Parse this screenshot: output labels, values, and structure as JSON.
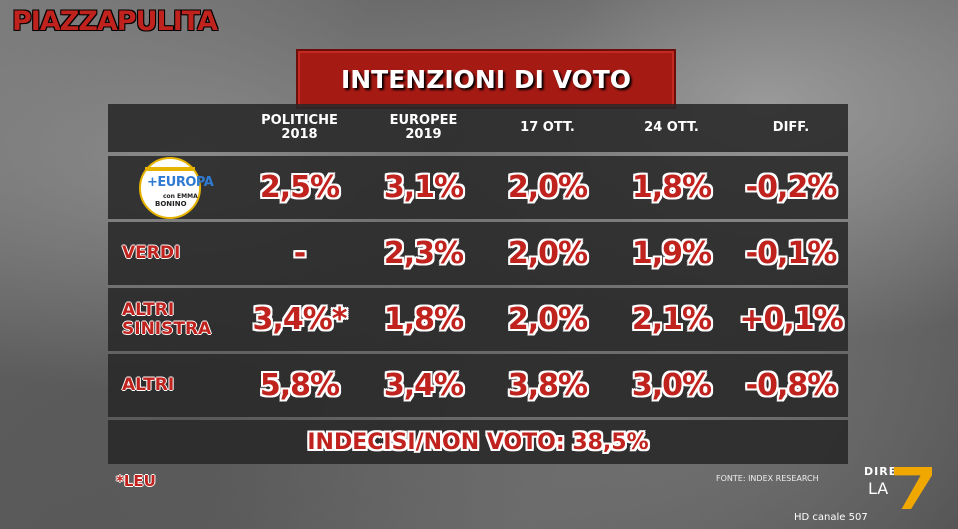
{
  "brand": "PIAZZAPULITA",
  "title": "INTENZIONI DI VOTO",
  "chart_data": {
    "type": "table",
    "title": "INTENZIONI DI VOTO",
    "columns": [
      "POLITICHE 2018",
      "EUROPEE 2019",
      "17 OTT.",
      "24 OTT.",
      "DIFF."
    ],
    "header": {
      "col1_line1": "POLITICHE",
      "col1_line2": "2018",
      "col2_line1": "EUROPEE",
      "col2_line2": "2019",
      "col3": "17 OTT.",
      "col4": "24 OTT.",
      "col5": "DIFF."
    },
    "rows": [
      {
        "party": "+EUROPA",
        "logo": {
          "top": "+EUROPA",
          "sub1": "con EMMA",
          "sub2": "BONINO"
        },
        "politiche_2018": "2,5%",
        "europee_2019": "3,1%",
        "ott_17": "2,0%",
        "ott_24": "1,8%",
        "diff": "-0,2%"
      },
      {
        "party": "VERDI",
        "politiche_2018": "-",
        "europee_2019": "2,3%",
        "ott_17": "2,0%",
        "ott_24": "1,9%",
        "diff": "-0,1%"
      },
      {
        "party_line1": "ALTRI",
        "party_line2": "SINISTRA",
        "politiche_2018": "3,4%*",
        "europee_2019": "1,8%",
        "ott_17": "2,0%",
        "ott_24": "2,1%",
        "diff": "+0,1%"
      },
      {
        "party": "ALTRI",
        "politiche_2018": "5,8%",
        "europee_2019": "3,4%",
        "ott_17": "3,8%",
        "ott_24": "3,0%",
        "diff": "-0,8%"
      }
    ],
    "footer": "INDECISI/NON VOTO: 38,5%"
  },
  "note": "*LEU",
  "source": "FONTE: INDEX RESEARCH",
  "channel": {
    "diretta": "DIRETTA",
    "la": "LA",
    "hd": "HD canale 507"
  },
  "colors": {
    "accent_red": "#c0221d",
    "title_bg": "#a61a14",
    "row_bg": "#282828",
    "logo_yellow": "#f0a800"
  }
}
